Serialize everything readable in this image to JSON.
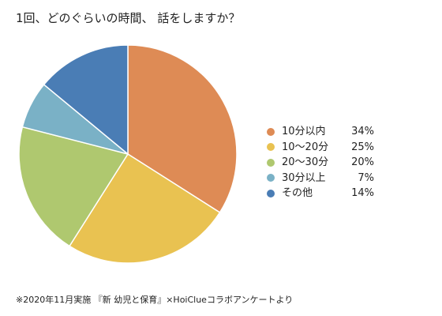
{
  "chart_data": {
    "type": "pie",
    "title": "1回、どのぐらいの時間、 話をしますか？",
    "categories": [
      "10分以内",
      "10〜20分",
      "20〜30分",
      "30分以上",
      "その他"
    ],
    "values": [
      34,
      25,
      20,
      7,
      14
    ],
    "value_labels": [
      "34%",
      "25%",
      "20%",
      "7%",
      "14%"
    ],
    "colors": [
      "#DE8B55",
      "#E9C251",
      "#AFC86F",
      "#7AB1C6",
      "#4A7DB5"
    ],
    "start": "12 o'clock, clockwise",
    "legend_position": "right"
  },
  "source_note": "※2020年11月実施 『新 幼児と保育』×HoiClueコラボアンケートより"
}
